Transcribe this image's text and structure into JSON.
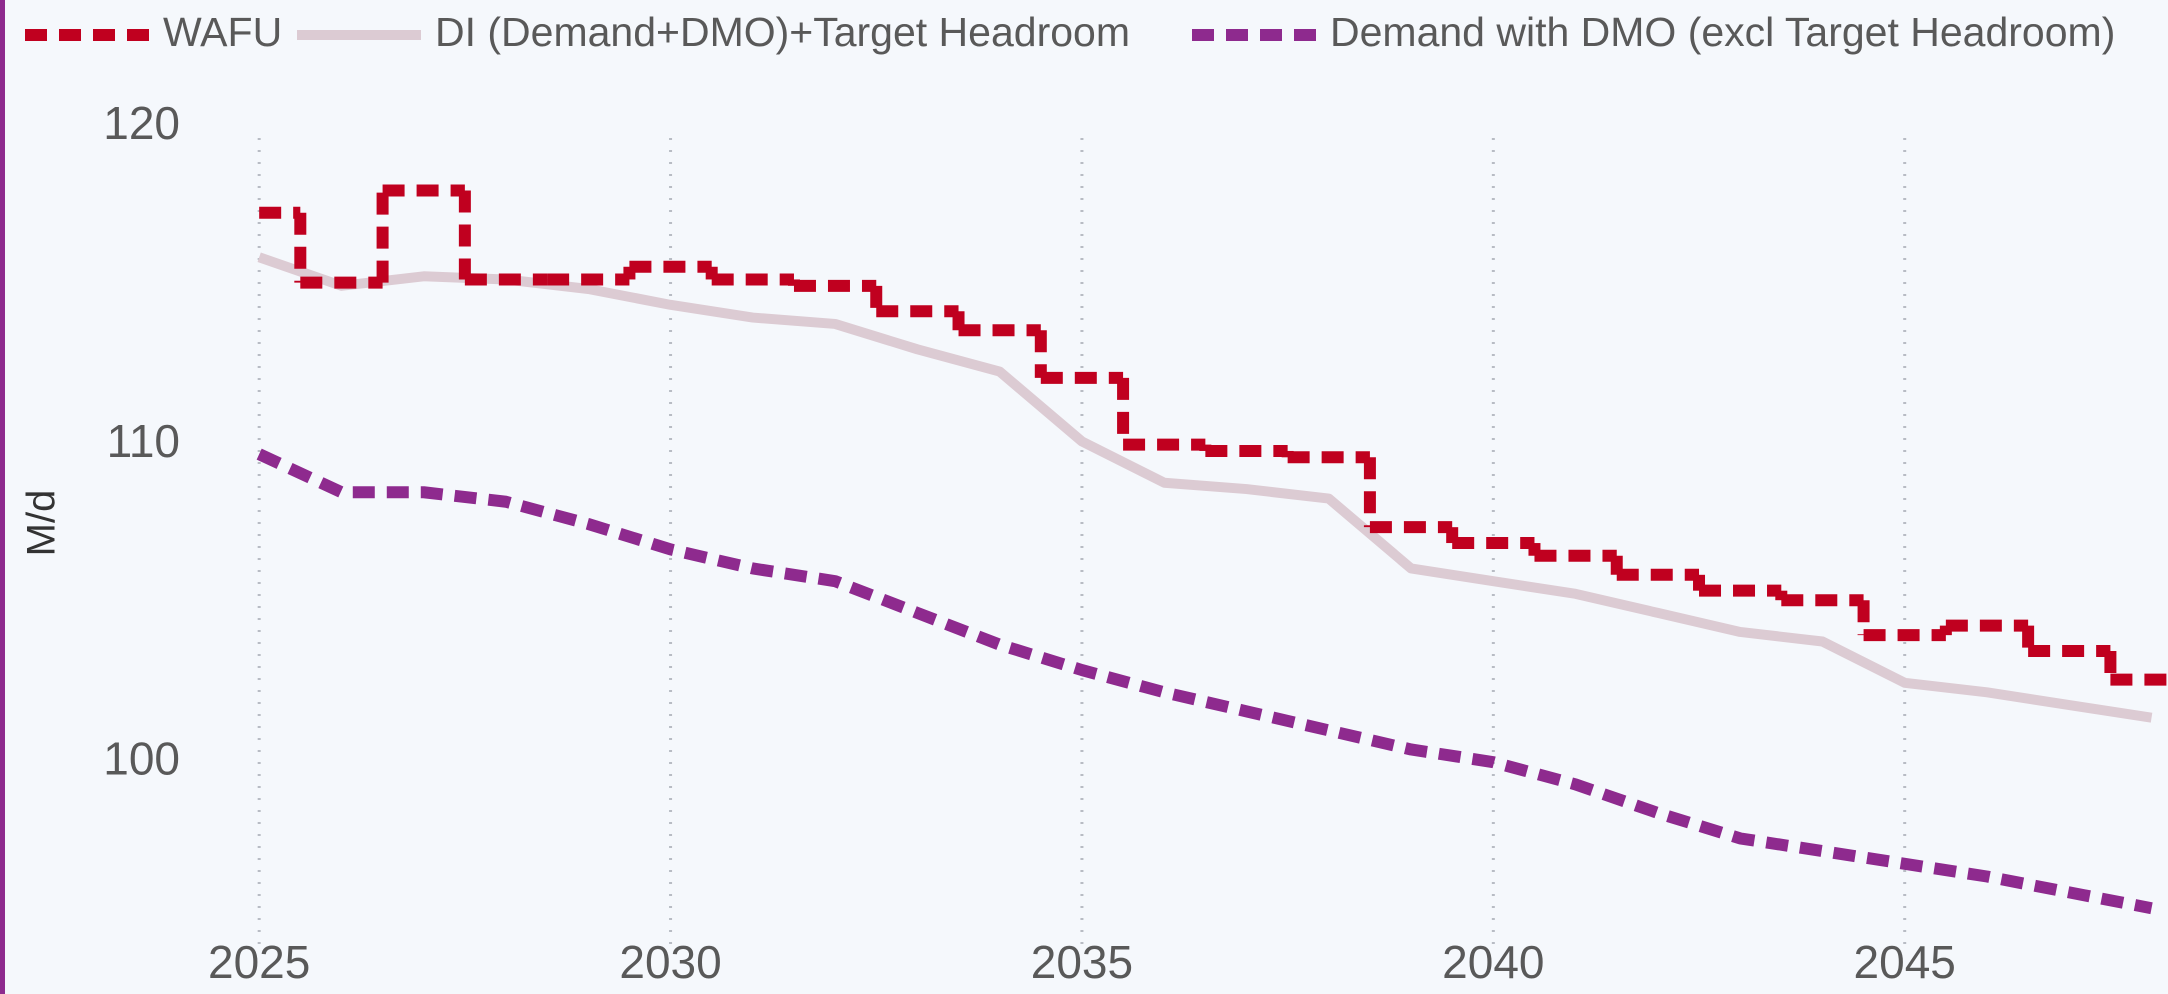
{
  "chart_data": {
    "type": "line",
    "y_label": "M/d",
    "x": [
      2025,
      2026,
      2027,
      2028,
      2029,
      2030,
      2031,
      2032,
      2033,
      2034,
      2035,
      2036,
      2037,
      2038,
      2039,
      2040,
      2041,
      2042,
      2043,
      2044,
      2045,
      2046,
      2047,
      2048
    ],
    "series": [
      {
        "name": "WAFU",
        "color": "#c0001f",
        "style": "step-dashed",
        "values": [
          117.3,
          115.1,
          118.0,
          115.2,
          115.2,
          115.6,
          115.2,
          115.0,
          114.2,
          113.6,
          112.1,
          110.0,
          109.8,
          109.6,
          107.4,
          106.9,
          106.5,
          105.9,
          105.4,
          105.1,
          104.0,
          104.3,
          103.5,
          102.6
        ]
      },
      {
        "name": "DI (Demand+DMO)+Target Headroom",
        "color": "#dccbd3",
        "style": "solid",
        "values": [
          115.9,
          115.0,
          115.3,
          115.2,
          114.9,
          114.4,
          114.0,
          113.8,
          113.0,
          112.3,
          110.1,
          108.8,
          108.6,
          108.3,
          106.1,
          105.7,
          105.3,
          104.7,
          104.1,
          103.8,
          102.5,
          102.2,
          101.8,
          101.4
        ]
      },
      {
        "name": "Demand with DMO (excl Target Headroom)",
        "color": "#8e2a8e",
        "style": "dashed",
        "values": [
          109.7,
          108.5,
          108.5,
          108.2,
          107.5,
          106.7,
          106.1,
          105.7,
          104.7,
          103.7,
          102.9,
          102.2,
          101.6,
          101.0,
          100.4,
          100.0,
          99.3,
          98.4,
          97.6,
          97.2,
          96.8,
          96.4,
          95.9,
          95.4
        ]
      }
    ],
    "xlim": [
      2021.85,
      2048.2
    ],
    "ylim": [
      92.7,
      124
    ],
    "xticks": [
      2025,
      2030,
      2035,
      2040,
      2045
    ],
    "yticks": [
      100,
      110,
      120
    ],
    "grid": "x",
    "legend": "top"
  }
}
